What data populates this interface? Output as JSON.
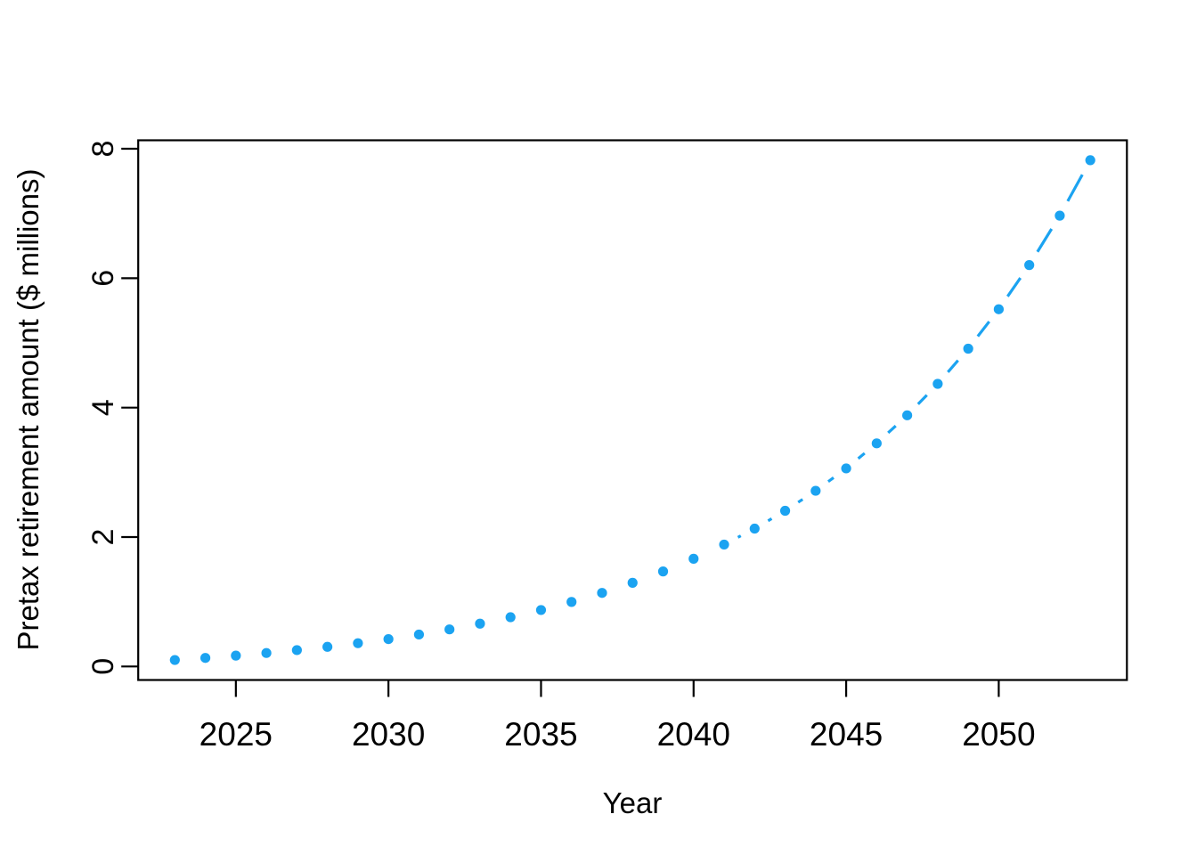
{
  "chart_data": {
    "type": "scatter",
    "title": "",
    "xlabel": "Year",
    "ylabel": "Pretax retirement amount ($ millions)",
    "x": [
      2023,
      2024,
      2025,
      2026,
      2027,
      2028,
      2029,
      2030,
      2031,
      2032,
      2033,
      2034,
      2035,
      2036,
      2037,
      2038,
      2039,
      2040,
      2041,
      2042,
      2043,
      2044,
      2045,
      2046,
      2047,
      2048,
      2049,
      2050,
      2051,
      2052,
      2053
    ],
    "values": [
      0.1,
      0.132,
      0.1678,
      0.208,
      0.2529,
      0.3033,
      0.3597,
      0.4228,
      0.4936,
      0.5728,
      0.6616,
      0.7609,
      0.8723,
      0.9969,
      1.1366,
      1.293,
      1.4681,
      1.6643,
      1.884,
      2.1301,
      2.4057,
      2.7144,
      3.0601,
      3.4473,
      3.881,
      4.3667,
      4.9107,
      5.52,
      6.2024,
      6.9666,
      7.8226
    ],
    "xticks": [
      2025,
      2030,
      2035,
      2040,
      2045,
      2050
    ],
    "yticks": [
      0,
      2,
      4,
      6,
      8
    ],
    "xlim": [
      2021.8,
      2054.2
    ],
    "ylim": [
      -0.209,
      8.131
    ],
    "grid": false,
    "legend": "none",
    "marker": "filled-circle",
    "line_style": "dashed",
    "point_color": "#1BA3F1",
    "line_color": "#1BA3F1",
    "axis_color": "#000000",
    "background_color": "#ffffff"
  }
}
